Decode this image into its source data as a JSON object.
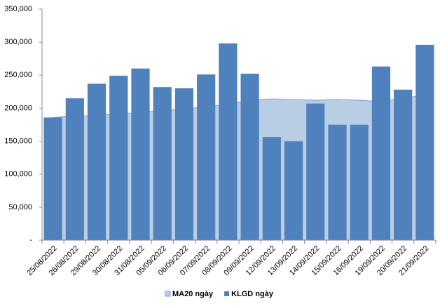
{
  "chart_data": {
    "type": "bar",
    "categories": [
      "25/08/2022",
      "26/08/2022",
      "29/08/2022",
      "30/08/2022",
      "31/08/2022",
      "05/09/2022",
      "06/09/2022",
      "07/09/2022",
      "08/09/2022",
      "09/09/2022",
      "12/09/2022",
      "13/09/2022",
      "14/09/2022",
      "15/09/2022",
      "16/09/2022",
      "19/09/2022",
      "20/09/2022",
      "21/09/2022"
    ],
    "series": [
      {
        "name": "MA20 ngày",
        "type": "area",
        "color": "#b9cde5",
        "edge_color": "#7f9fcf",
        "values": [
          186000,
          188000,
          189000,
          191000,
          194000,
          196000,
          199000,
          202000,
          206000,
          212000,
          214000,
          213000,
          212000,
          213000,
          212000,
          210000,
          215000,
          220000
        ]
      },
      {
        "name": "KLGD ngày",
        "type": "bar",
        "color": "#4f81bd",
        "values": [
          186000,
          215000,
          237000,
          249000,
          260000,
          232000,
          230000,
          251000,
          298000,
          252000,
          156000,
          150000,
          207000,
          175000,
          175000,
          263000,
          228000,
          296000
        ]
      }
    ],
    "ylim": [
      0,
      350000
    ],
    "yticks": [
      {
        "value": 0,
        "label": "-"
      },
      {
        "value": 50000,
        "label": "50,000"
      },
      {
        "value": 100000,
        "label": "100,000"
      },
      {
        "value": 150000,
        "label": "150,000"
      },
      {
        "value": 200000,
        "label": "200,000"
      },
      {
        "value": 250000,
        "label": "250,000"
      },
      {
        "value": 300000,
        "label": "300,000"
      },
      {
        "value": 350000,
        "label": "350,000"
      }
    ],
    "legend": "bottom"
  }
}
